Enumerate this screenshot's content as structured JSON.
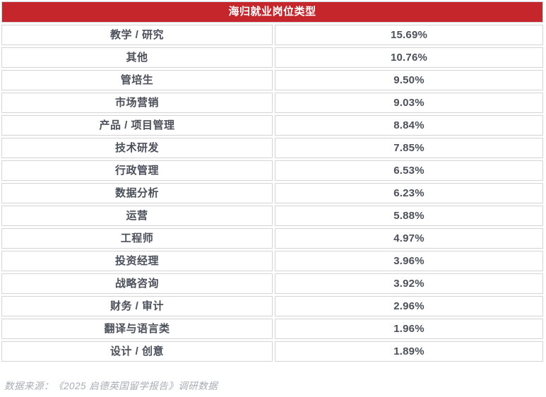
{
  "header": {
    "title": "海归就业岗位类型"
  },
  "table": {
    "rows": [
      {
        "label": "教学 / 研究",
        "value": "15.69%"
      },
      {
        "label": "其他",
        "value": "10.76%"
      },
      {
        "label": "管培生",
        "value": "9.50%"
      },
      {
        "label": "市场营销",
        "value": "9.03%"
      },
      {
        "label": "产品 / 项目管理",
        "value": "8.84%"
      },
      {
        "label": "技术研发",
        "value": "7.85%"
      },
      {
        "label": "行政管理",
        "value": "6.53%"
      },
      {
        "label": "数据分析",
        "value": "6.23%"
      },
      {
        "label": "运营",
        "value": "5.88%"
      },
      {
        "label": "工程师",
        "value": "4.97%"
      },
      {
        "label": "投资经理",
        "value": "3.96%"
      },
      {
        "label": "战略咨询",
        "value": "3.92%"
      },
      {
        "label": "财务 / 审计",
        "value": "2.96%"
      },
      {
        "label": "翻译与语言类",
        "value": "1.96%"
      },
      {
        "label": "设计 / 创意",
        "value": "1.89%"
      }
    ]
  },
  "footer": {
    "source": "数据来源：《2025 启德英国留学报告》调研数据"
  },
  "colors": {
    "header_bg": "#c5262c",
    "header_text": "#ffffff",
    "row_text": "#4b505a",
    "cell_border": "#d5d5d7",
    "footer_text": "#a8adb4"
  },
  "chart_data": {
    "type": "table",
    "title": "海归就业岗位类型",
    "categories": [
      "教学 / 研究",
      "其他",
      "管培生",
      "市场营销",
      "产品 / 项目管理",
      "技术研发",
      "行政管理",
      "数据分析",
      "运营",
      "工程师",
      "投资经理",
      "战略咨询",
      "财务 / 审计",
      "翻译与语言类",
      "设计 / 创意"
    ],
    "values": [
      15.69,
      10.76,
      9.5,
      9.03,
      8.84,
      7.85,
      6.53,
      6.23,
      5.88,
      4.97,
      3.96,
      3.92,
      2.96,
      1.96,
      1.89
    ],
    "value_unit": "%",
    "source_note": "数据来源：《2025 启德英国留学报告》调研数据"
  }
}
